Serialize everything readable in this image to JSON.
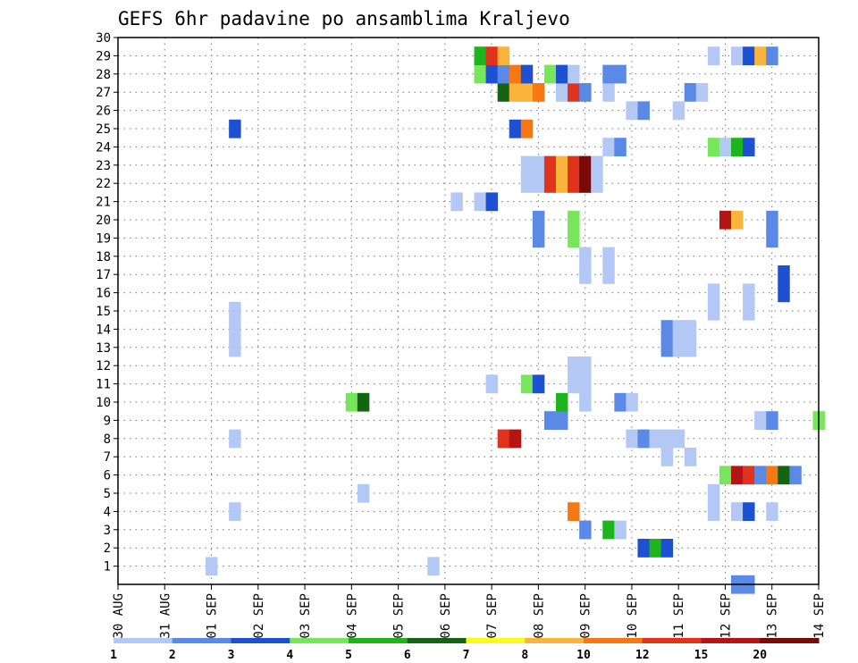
{
  "chart_data": {
    "type": "heatmap",
    "title": "GEFS 6hr padavine po ansamblima Kraljevo",
    "x_tick_labels": [
      "30 AUG",
      "31 AUG",
      "01 SEP",
      "02 SEP",
      "03 SEP",
      "04 SEP",
      "05 SEP",
      "06 SEP",
      "07 SEP",
      "08 SEP",
      "09 SEP",
      "10 SEP",
      "11 SEP",
      "12 SEP",
      "13 SEP",
      "14 SEP"
    ],
    "x_unit": "6-hour steps from 30 AUG 00",
    "x_range": [
      0,
      60
    ],
    "y_tick_labels": [
      1,
      2,
      3,
      4,
      5,
      6,
      7,
      8,
      9,
      10,
      11,
      12,
      13,
      14,
      15,
      16,
      17,
      18,
      19,
      20,
      21,
      22,
      23,
      24,
      25,
      26,
      27,
      28,
      29,
      30
    ],
    "y_range": [
      0,
      30
    ],
    "grid": true,
    "colorbar": {
      "position": "bottom",
      "labels": [
        "1",
        "2",
        "3",
        "4",
        "5",
        "6",
        "7",
        "8",
        "10",
        "12",
        "15",
        "20"
      ],
      "colors": [
        "#b4c8f5",
        "#5a8ae6",
        "#1e50d2",
        "#78e65a",
        "#1eb41e",
        "#146414",
        "#fafa1e",
        "#fab43c",
        "#f57814",
        "#e1321e",
        "#b41414",
        "#780a0a"
      ]
    },
    "cells": [
      {
        "x": 8,
        "y": 1,
        "c": 1
      },
      {
        "x": 27,
        "y": 1,
        "c": 1
      },
      {
        "x": 45,
        "y": 2,
        "c": 3
      },
      {
        "x": 46,
        "y": 2,
        "c": 5
      },
      {
        "x": 47,
        "y": 2,
        "c": 3
      },
      {
        "x": 40,
        "y": 3,
        "c": 2
      },
      {
        "x": 42,
        "y": 3,
        "c": 5
      },
      {
        "x": 43,
        "y": 3,
        "c": 1
      },
      {
        "x": 10,
        "y": 4,
        "c": 1
      },
      {
        "x": 39,
        "y": 4,
        "c": 9
      },
      {
        "x": 51,
        "y": 4,
        "c": 1
      },
      {
        "x": 53,
        "y": 4,
        "c": 1
      },
      {
        "x": 54,
        "y": 4,
        "c": 3
      },
      {
        "x": 56,
        "y": 4,
        "c": 1
      },
      {
        "x": 21,
        "y": 5,
        "c": 1
      },
      {
        "x": 51,
        "y": 5,
        "c": 1
      },
      {
        "x": 52,
        "y": 6,
        "c": 4
      },
      {
        "x": 53,
        "y": 6,
        "c": 11
      },
      {
        "x": 54,
        "y": 6,
        "c": 10
      },
      {
        "x": 55,
        "y": 6,
        "c": 2
      },
      {
        "x": 56,
        "y": 6,
        "c": 9
      },
      {
        "x": 57,
        "y": 6,
        "c": 6
      },
      {
        "x": 58,
        "y": 6,
        "c": 2
      },
      {
        "x": 47,
        "y": 7,
        "c": 1
      },
      {
        "x": 49,
        "y": 7,
        "c": 1
      },
      {
        "x": 10,
        "y": 8,
        "c": 1
      },
      {
        "x": 33,
        "y": 8,
        "c": 10
      },
      {
        "x": 34,
        "y": 8,
        "c": 11
      },
      {
        "x": 44,
        "y": 8,
        "c": 1
      },
      {
        "x": 45,
        "y": 8,
        "c": 2
      },
      {
        "x": 46,
        "y": 8,
        "c": 1
      },
      {
        "x": 47,
        "y": 8,
        "c": 1
      },
      {
        "x": 48,
        "y": 8,
        "c": 1
      },
      {
        "x": 37,
        "y": 9,
        "c": 2
      },
      {
        "x": 38,
        "y": 9,
        "c": 2
      },
      {
        "x": 55,
        "y": 9,
        "c": 1
      },
      {
        "x": 56,
        "y": 9,
        "c": 2
      },
      {
        "x": 60,
        "y": 9,
        "c": 4
      },
      {
        "x": 20,
        "y": 10,
        "c": 4
      },
      {
        "x": 21,
        "y": 10,
        "c": 6
      },
      {
        "x": 38,
        "y": 10,
        "c": 5
      },
      {
        "x": 40,
        "y": 10,
        "c": 1
      },
      {
        "x": 43,
        "y": 10,
        "c": 2
      },
      {
        "x": 44,
        "y": 10,
        "c": 1
      },
      {
        "x": 32,
        "y": 11,
        "c": 1
      },
      {
        "x": 35,
        "y": 11,
        "c": 4
      },
      {
        "x": 36,
        "y": 11,
        "c": 3
      },
      {
        "x": 39,
        "y": 11,
        "c": 1
      },
      {
        "x": 40,
        "y": 11,
        "c": 1
      },
      {
        "x": 39,
        "y": 12,
        "c": 1
      },
      {
        "x": 40,
        "y": 12,
        "c": 1
      },
      {
        "x": 10,
        "y": 13,
        "c": 1
      },
      {
        "x": 47,
        "y": 13,
        "c": 2
      },
      {
        "x": 48,
        "y": 13,
        "c": 1
      },
      {
        "x": 49,
        "y": 13,
        "c": 1
      },
      {
        "x": 10,
        "y": 14,
        "c": 1
      },
      {
        "x": 47,
        "y": 14,
        "c": 2
      },
      {
        "x": 48,
        "y": 14,
        "c": 1
      },
      {
        "x": 49,
        "y": 14,
        "c": 1
      },
      {
        "x": 10,
        "y": 15,
        "c": 1
      },
      {
        "x": 51,
        "y": 15,
        "c": 1
      },
      {
        "x": 54,
        "y": 15,
        "c": 1
      },
      {
        "x": 51,
        "y": 16,
        "c": 1
      },
      {
        "x": 54,
        "y": 16,
        "c": 1
      },
      {
        "x": 57,
        "y": 16,
        "c": 3
      },
      {
        "x": 57,
        "y": 17,
        "c": 3
      },
      {
        "x": 40,
        "y": 17,
        "c": 1
      },
      {
        "x": 42,
        "y": 17,
        "c": 1
      },
      {
        "x": 40,
        "y": 18,
        "c": 1
      },
      {
        "x": 42,
        "y": 18,
        "c": 1
      },
      {
        "x": 36,
        "y": 19,
        "c": 2
      },
      {
        "x": 39,
        "y": 19,
        "c": 4
      },
      {
        "x": 56,
        "y": 19,
        "c": 2
      },
      {
        "x": 36,
        "y": 20,
        "c": 2
      },
      {
        "x": 39,
        "y": 20,
        "c": 4
      },
      {
        "x": 52,
        "y": 20,
        "c": 11
      },
      {
        "x": 53,
        "y": 20,
        "c": 8
      },
      {
        "x": 56,
        "y": 20,
        "c": 2
      },
      {
        "x": 29,
        "y": 21,
        "c": 1
      },
      {
        "x": 31,
        "y": 21,
        "c": 1
      },
      {
        "x": 32,
        "y": 21,
        "c": 3
      },
      {
        "x": 35,
        "y": 22,
        "c": 1
      },
      {
        "x": 36,
        "y": 22,
        "c": 1
      },
      {
        "x": 37,
        "y": 22,
        "c": 10
      },
      {
        "x": 38,
        "y": 22,
        "c": 8
      },
      {
        "x": 39,
        "y": 22,
        "c": 10
      },
      {
        "x": 40,
        "y": 22,
        "c": 12
      },
      {
        "x": 41,
        "y": 22,
        "c": 1
      },
      {
        "x": 35,
        "y": 23,
        "c": 1
      },
      {
        "x": 36,
        "y": 23,
        "c": 1
      },
      {
        "x": 37,
        "y": 23,
        "c": 10
      },
      {
        "x": 38,
        "y": 23,
        "c": 8
      },
      {
        "x": 39,
        "y": 23,
        "c": 10
      },
      {
        "x": 40,
        "y": 23,
        "c": 12
      },
      {
        "x": 41,
        "y": 23,
        "c": 1
      },
      {
        "x": 42,
        "y": 24,
        "c": 1
      },
      {
        "x": 43,
        "y": 24,
        "c": 2
      },
      {
        "x": 51,
        "y": 24,
        "c": 4
      },
      {
        "x": 52,
        "y": 24,
        "c": 1
      },
      {
        "x": 53,
        "y": 24,
        "c": 5
      },
      {
        "x": 54,
        "y": 24,
        "c": 3
      },
      {
        "x": 10,
        "y": 25,
        "c": 3
      },
      {
        "x": 34,
        "y": 25,
        "c": 3
      },
      {
        "x": 35,
        "y": 25,
        "c": 9
      },
      {
        "x": 44,
        "y": 26,
        "c": 1
      },
      {
        "x": 45,
        "y": 26,
        "c": 2
      },
      {
        "x": 48,
        "y": 26,
        "c": 1
      },
      {
        "x": 33,
        "y": 27,
        "c": 6
      },
      {
        "x": 34,
        "y": 27,
        "c": 8
      },
      {
        "x": 35,
        "y": 27,
        "c": 8
      },
      {
        "x": 36,
        "y": 27,
        "c": 9
      },
      {
        "x": 38,
        "y": 27,
        "c": 1
      },
      {
        "x": 39,
        "y": 27,
        "c": 10
      },
      {
        "x": 40,
        "y": 27,
        "c": 2
      },
      {
        "x": 42,
        "y": 27,
        "c": 1
      },
      {
        "x": 49,
        "y": 27,
        "c": 2
      },
      {
        "x": 50,
        "y": 27,
        "c": 1
      },
      {
        "x": 31,
        "y": 28,
        "c": 4
      },
      {
        "x": 32,
        "y": 28,
        "c": 3
      },
      {
        "x": 33,
        "y": 28,
        "c": 2
      },
      {
        "x": 34,
        "y": 28,
        "c": 9
      },
      {
        "x": 35,
        "y": 28,
        "c": 3
      },
      {
        "x": 37,
        "y": 28,
        "c": 4
      },
      {
        "x": 38,
        "y": 28,
        "c": 3
      },
      {
        "x": 39,
        "y": 28,
        "c": 1
      },
      {
        "x": 42,
        "y": 28,
        "c": 2
      },
      {
        "x": 43,
        "y": 28,
        "c": 2
      },
      {
        "x": 31,
        "y": 29,
        "c": 5
      },
      {
        "x": 32,
        "y": 29,
        "c": 10
      },
      {
        "x": 33,
        "y": 29,
        "c": 8
      },
      {
        "x": 51,
        "y": 29,
        "c": 1
      },
      {
        "x": 53,
        "y": 29,
        "c": 1
      },
      {
        "x": 54,
        "y": 29,
        "c": 3
      },
      {
        "x": 55,
        "y": 29,
        "c": 8
      },
      {
        "x": 56,
        "y": 29,
        "c": 2
      },
      {
        "x": 53,
        "y": 0,
        "c": 2
      },
      {
        "x": 54,
        "y": 0,
        "c": 2
      }
    ]
  }
}
